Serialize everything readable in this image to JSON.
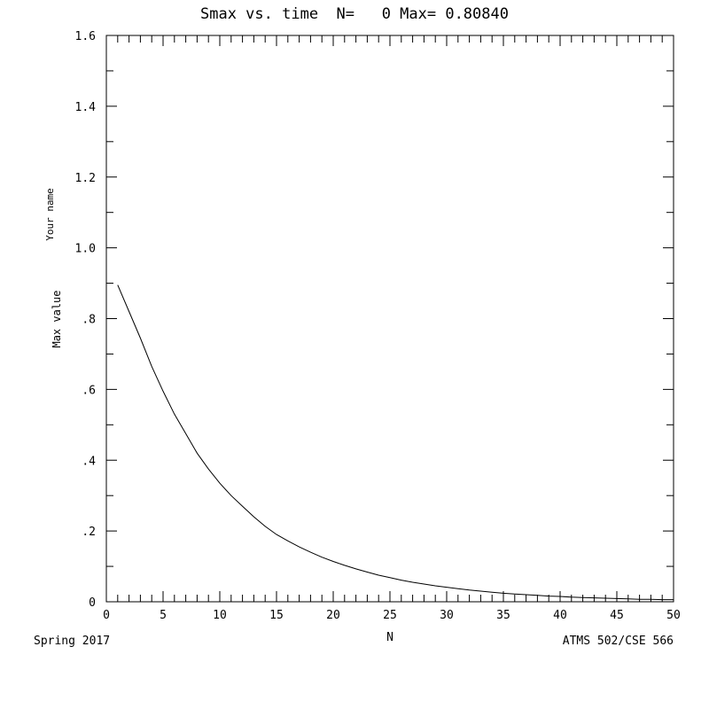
{
  "chart_data": {
    "type": "line",
    "title": "Smax vs. time  N=   0 Max= 0.80840",
    "xlabel": "N",
    "ylabel_top": "Your name",
    "ylabel_bottom": "Max value",
    "footer_left": "Spring 2017",
    "footer_right": "ATMS 502/CSE 566",
    "xlim": [
      0,
      50
    ],
    "ylim": [
      0,
      1.6
    ],
    "x_ticks": [
      0,
      5,
      10,
      15,
      20,
      25,
      30,
      35,
      40,
      45,
      50
    ],
    "x_tick_labels": [
      "0",
      "5",
      "10",
      "15",
      "20",
      "25",
      "30",
      "35",
      "40",
      "45",
      "50"
    ],
    "y_ticks": [
      0,
      0.2,
      0.4,
      0.6,
      0.8,
      1.0,
      1.2,
      1.4,
      1.6
    ],
    "y_tick_labels": [
      "0",
      ".2",
      ".4",
      ".6",
      ".8",
      "1.0",
      "1.2",
      "1.4",
      "1.6"
    ],
    "grid": false,
    "series": [
      {
        "x": [
          1,
          2,
          3,
          4,
          5,
          6,
          7,
          8,
          9,
          10,
          11,
          12,
          13,
          14,
          15,
          16,
          17,
          18,
          19,
          20,
          21,
          22,
          23,
          24,
          25,
          26,
          27,
          28,
          29,
          30,
          31,
          32,
          33,
          34,
          35,
          36,
          37,
          38,
          39,
          40,
          41,
          42,
          43,
          44,
          45,
          46,
          47,
          48,
          49,
          50
        ],
        "y": [
          0.895,
          0.82,
          0.745,
          0.665,
          0.595,
          0.53,
          0.475,
          0.42,
          0.375,
          0.335,
          0.3,
          0.27,
          0.24,
          0.213,
          0.19,
          0.172,
          0.155,
          0.14,
          0.126,
          0.114,
          0.103,
          0.093,
          0.084,
          0.075,
          0.068,
          0.061,
          0.055,
          0.05,
          0.045,
          0.041,
          0.037,
          0.033,
          0.03,
          0.027,
          0.024,
          0.022,
          0.02,
          0.018,
          0.016,
          0.015,
          0.013,
          0.012,
          0.011,
          0.01,
          0.009,
          0.008,
          0.007,
          0.007,
          0.006,
          0.006
        ]
      }
    ]
  }
}
